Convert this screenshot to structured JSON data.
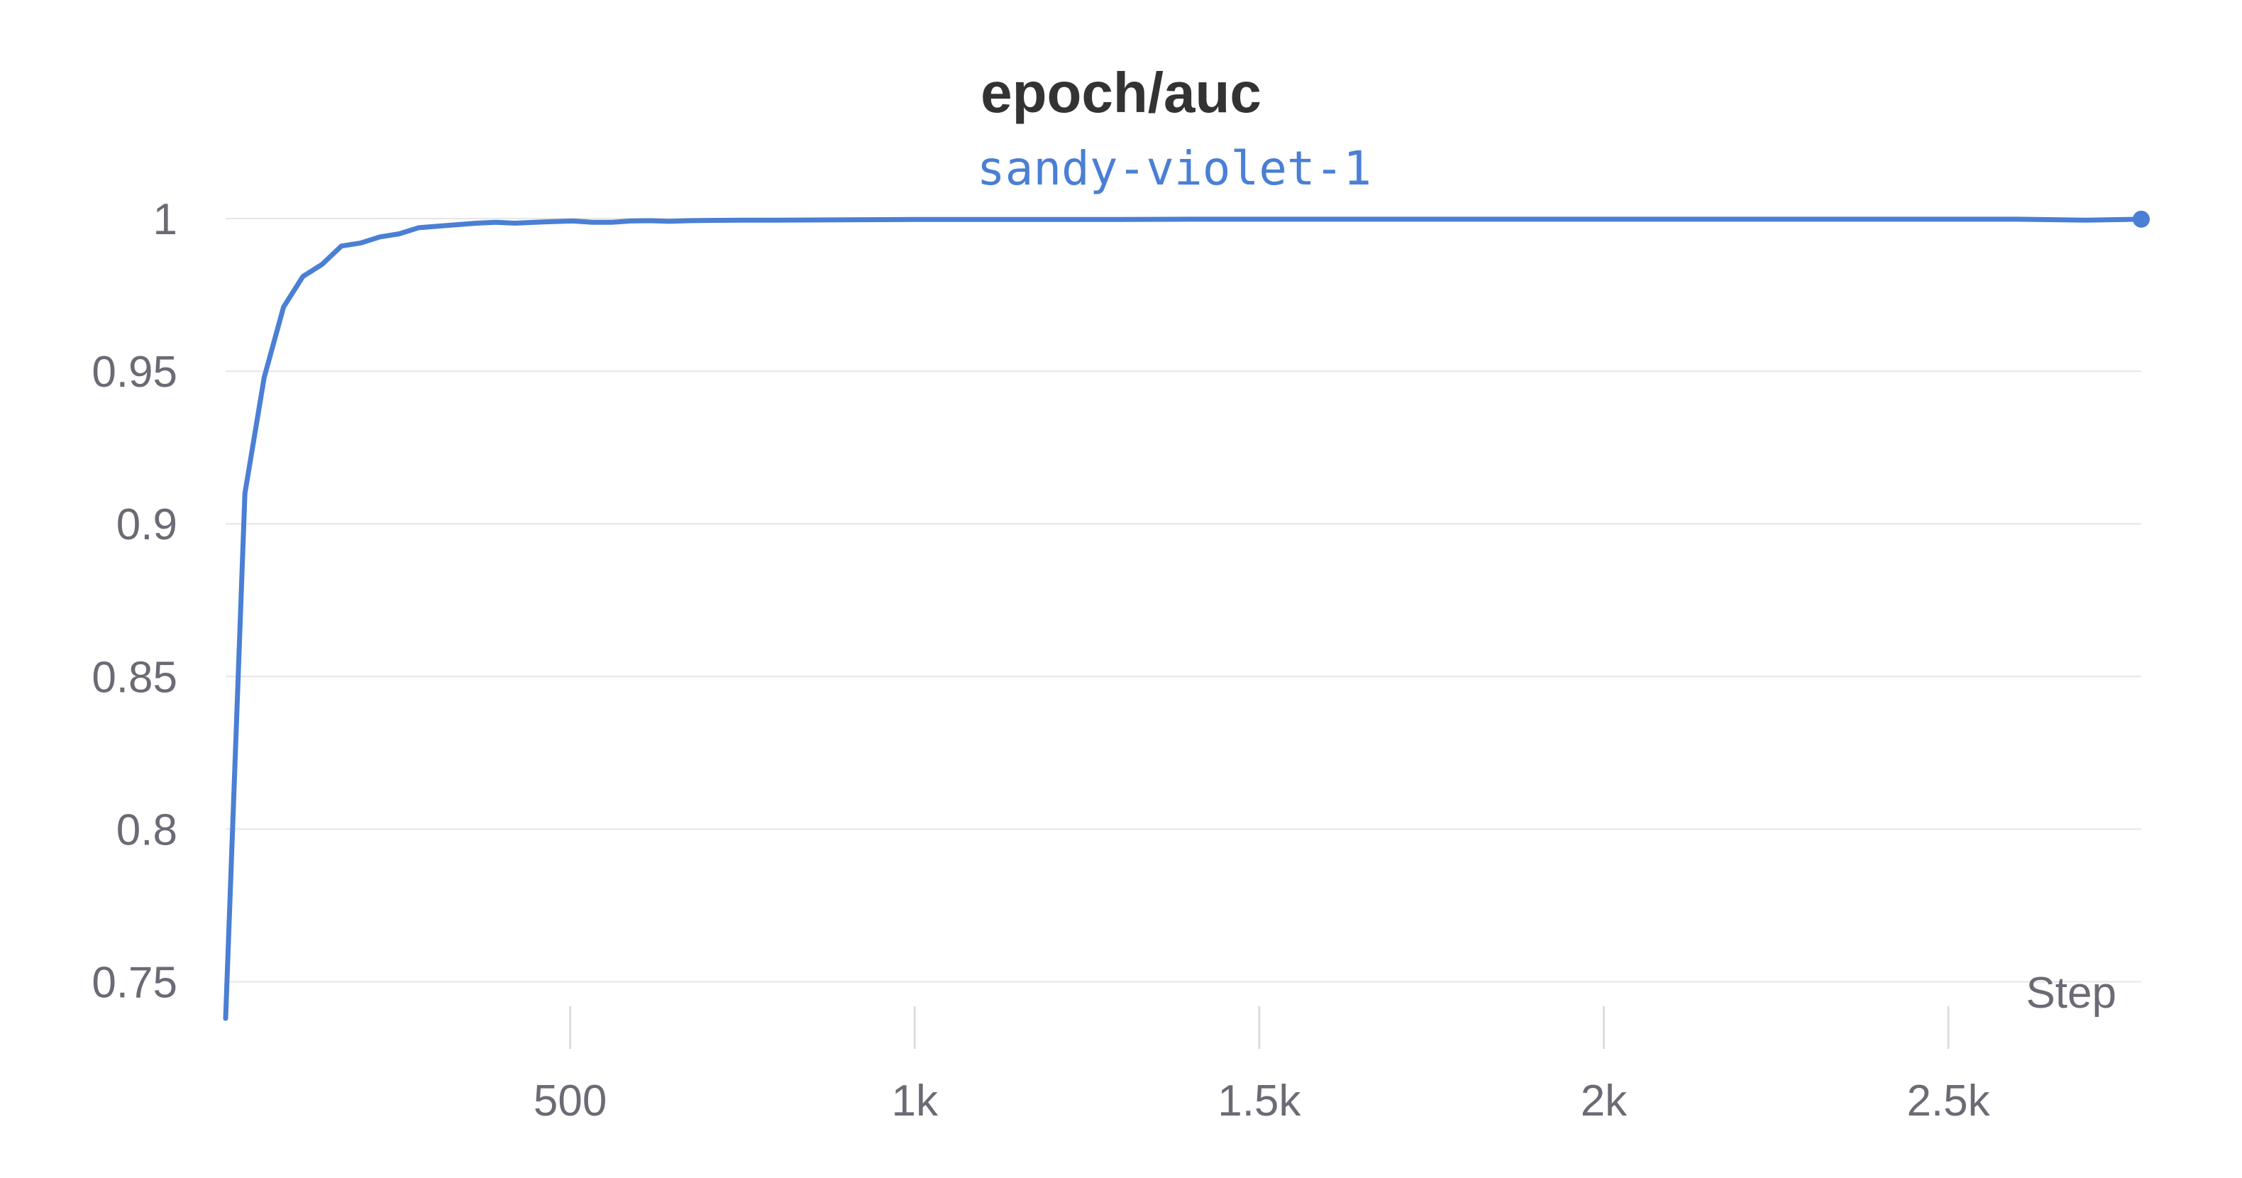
{
  "chart_data": {
    "type": "line",
    "title": "epoch/auc",
    "xlabel": "Step",
    "ylabel": "",
    "xlim": [
      0,
      2780
    ],
    "ylim": [
      0.735,
      1.0
    ],
    "x_ticks": [
      500,
      1000,
      1500,
      2000,
      2500
    ],
    "x_tick_labels": [
      "500",
      "1k",
      "1.5k",
      "2k",
      "2.5k"
    ],
    "y_ticks": [
      0.75,
      0.8,
      0.85,
      0.9,
      0.95,
      1
    ],
    "y_tick_labels": [
      "0.75",
      "0.8",
      "0.85",
      "0.9",
      "0.95",
      "1"
    ],
    "grid": true,
    "legend_position": "top-center",
    "series": [
      {
        "name": "sandy-violet-1",
        "color": "#4a7fd4",
        "x": [
          0,
          28,
          56,
          84,
          112,
          140,
          168,
          196,
          224,
          252,
          280,
          308,
          336,
          364,
          392,
          420,
          448,
          476,
          504,
          532,
          560,
          588,
          616,
          644,
          672,
          700,
          750,
          800,
          900,
          1000,
          1100,
          1200,
          1300,
          1400,
          1500,
          1600,
          1700,
          1800,
          1900,
          2000,
          2100,
          2200,
          2300,
          2400,
          2500,
          2600,
          2700,
          2780
        ],
        "y": [
          0.738,
          0.91,
          0.948,
          0.971,
          0.981,
          0.985,
          0.991,
          0.992,
          0.994,
          0.995,
          0.997,
          0.9975,
          0.998,
          0.9985,
          0.9988,
          0.9985,
          0.9988,
          0.999,
          0.9992,
          0.9988,
          0.9988,
          0.9992,
          0.9993,
          0.9991,
          0.9993,
          0.9994,
          0.9995,
          0.9995,
          0.9996,
          0.9997,
          0.9997,
          0.9997,
          0.9997,
          0.9998,
          0.9998,
          0.9998,
          0.9998,
          0.9998,
          0.9998,
          0.9998,
          0.9998,
          0.9998,
          0.9998,
          0.9998,
          0.9998,
          0.9998,
          0.9995,
          0.9998
        ]
      }
    ]
  }
}
